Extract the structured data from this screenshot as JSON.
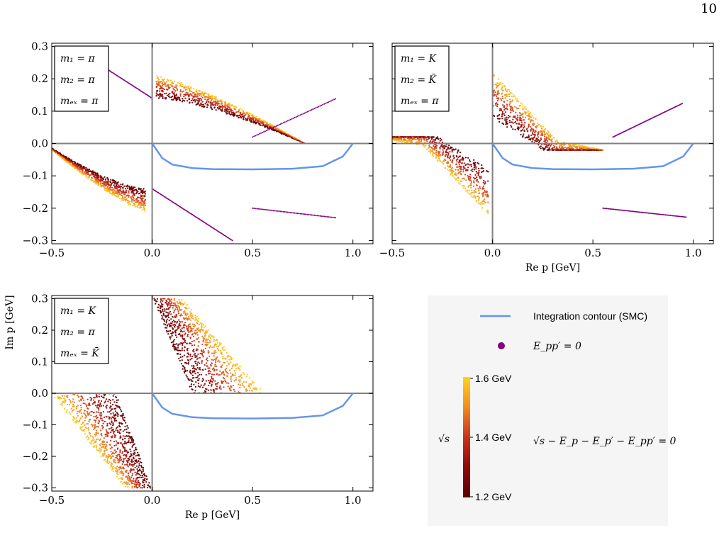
{
  "page": {
    "number": "10"
  },
  "colors": {
    "contour": "#6495ed",
    "zero_marker": "#800080",
    "axis_gray": "#808080",
    "cmap_low": "#5a0000",
    "cmap_mid": "#c8321e",
    "cmap_high": "#ffd21e",
    "legend_bg": "#f5f5f5"
  },
  "axes": {
    "xlabel": "Re p [GeV]",
    "ylabel": "Im p [GeV]",
    "xlim": [
      -0.5,
      1.1
    ],
    "ylim": [
      -0.31,
      0.31
    ],
    "xticks": [
      {
        "value": -0.5,
        "label": "−0.5"
      },
      {
        "value": 0.0,
        "label": "0.0"
      },
      {
        "value": 0.5,
        "label": "0.5"
      },
      {
        "value": 1.0,
        "label": "1.0"
      }
    ],
    "yticks": [
      {
        "value": 0.3,
        "label": "0.3"
      },
      {
        "value": 0.2,
        "label": "0.2"
      },
      {
        "value": 0.1,
        "label": "0.1"
      },
      {
        "value": 0.0,
        "label": "0.0"
      },
      {
        "value": -0.1,
        "label": "−0.1"
      },
      {
        "value": -0.2,
        "label": "−0.2"
      },
      {
        "value": -0.3,
        "label": "−0.3"
      }
    ]
  },
  "panels": [
    {
      "box_lines": [
        "m₁ = π",
        "m₂ = π",
        "mₑₓ = π"
      ],
      "show_yticks": true,
      "show_xlabel": false,
      "show_ylabel": false
    },
    {
      "box_lines": [
        "m₁ = K",
        "m₂ = K̄",
        "mₑₓ = π"
      ],
      "show_yticks": false,
      "show_xlabel": true,
      "show_ylabel": false
    },
    {
      "box_lines": [
        "m₁ = K",
        "m₂ = π",
        "mₑₓ = K̄"
      ],
      "show_yticks": true,
      "show_xlabel": true,
      "show_ylabel": true
    }
  ],
  "legend": {
    "contour_label": "Integration contour (SMC)",
    "zero_label": "E_pp′ = 0",
    "colorbar_label": "√s",
    "colorbar_ticks": [
      "1.6 GeV",
      "1.4 GeV",
      "1.2 GeV"
    ],
    "equation": "√s − E_p − E_p′ − E_pp′ = 0"
  },
  "chart_data": [
    {
      "type": "scatter",
      "xlabel": "",
      "ylabel": "",
      "xlim": [
        -0.5,
        1.1
      ],
      "ylim": [
        -0.31,
        0.31
      ],
      "series": [
        {
          "name": "Integration contour (SMC)",
          "x": [
            0.0,
            0.05,
            0.1,
            0.2,
            0.3,
            0.5,
            0.7,
            0.85,
            0.95,
            1.0
          ],
          "y": [
            0.0,
            -0.045,
            -0.065,
            -0.076,
            -0.079,
            -0.08,
            -0.078,
            -0.07,
            -0.04,
            0.0
          ]
        },
        {
          "name": "upper branch band",
          "x": [
            0.0,
            0.2,
            0.4,
            0.55,
            0.65,
            0.75
          ],
          "y": [
            0.14,
            0.11,
            0.08,
            0.05,
            0.01,
            0.0
          ]
        },
        {
          "name": "lower branch band",
          "x": [
            -0.5,
            -0.35,
            -0.2,
            -0.05,
            0.0
          ],
          "y": [
            -0.02,
            -0.06,
            -0.1,
            -0.13,
            -0.14
          ]
        }
      ],
      "colorbar_range_GeV": [
        1.2,
        1.6
      ]
    },
    {
      "type": "scatter",
      "xlabel": "Re p [GeV]",
      "ylabel": "",
      "xlim": [
        -0.5,
        1.1
      ],
      "ylim": [
        -0.31,
        0.31
      ],
      "series": [
        {
          "name": "Integration contour (SMC)",
          "x": [
            0.0,
            0.05,
            0.1,
            0.2,
            0.3,
            0.5,
            0.7,
            0.85,
            0.95,
            1.0
          ],
          "y": [
            0.0,
            -0.045,
            -0.065,
            -0.076,
            -0.079,
            -0.08,
            -0.078,
            -0.07,
            -0.04,
            0.0
          ]
        },
        {
          "name": "upper branch band",
          "x": [
            0.0,
            0.1,
            0.2,
            0.35,
            0.55
          ],
          "y": [
            0.14,
            0.06,
            0.0,
            -0.02,
            -0.02
          ]
        },
        {
          "name": "lower branch band",
          "x": [
            -0.5,
            -0.35,
            -0.2,
            -0.05,
            0.0
          ],
          "y": [
            0.02,
            0.02,
            0.0,
            -0.07,
            -0.14
          ]
        }
      ],
      "colorbar_range_GeV": [
        1.2,
        1.6
      ]
    },
    {
      "type": "scatter",
      "xlabel": "Re p [GeV]",
      "ylabel": "Im p [GeV]",
      "xlim": [
        -0.5,
        1.1
      ],
      "ylim": [
        -0.31,
        0.31
      ],
      "series": [
        {
          "name": "Integration contour (SMC)",
          "x": [
            0.0,
            0.05,
            0.1,
            0.2,
            0.3,
            0.5,
            0.7,
            0.85,
            0.95,
            1.0
          ],
          "y": [
            0.0,
            -0.045,
            -0.065,
            -0.076,
            -0.079,
            -0.08,
            -0.078,
            -0.07,
            -0.04,
            0.0
          ]
        },
        {
          "name": "upper branch band",
          "x": [
            0.0,
            0.1,
            0.2,
            0.4,
            0.56
          ],
          "y": [
            0.3,
            0.15,
            0.0,
            0.0,
            0.0
          ]
        },
        {
          "name": "lower branch band",
          "x": [
            -0.5,
            -0.3,
            -0.2,
            -0.1,
            0.0
          ],
          "y": [
            0.0,
            0.0,
            0.0,
            -0.15,
            -0.3
          ]
        }
      ],
      "colorbar_range_GeV": [
        1.2,
        1.6
      ]
    }
  ]
}
